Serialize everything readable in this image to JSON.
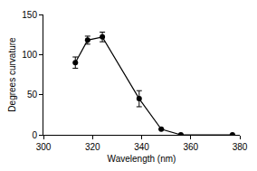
{
  "chart_data": {
    "type": "line",
    "x_label": "Wavelength (nm)",
    "y_label": "Degrees curvature",
    "x": [
      313,
      318,
      324,
      339,
      348,
      356,
      377
    ],
    "values": [
      90,
      118,
      122,
      45,
      7,
      0,
      0
    ],
    "errors": [
      7,
      5,
      6,
      10,
      null,
      null,
      null
    ],
    "color": "#000000",
    "marker": "circle",
    "line_style": "solid",
    "xlim": [
      300,
      380
    ],
    "xticks": [
      300,
      320,
      340,
      360,
      380
    ],
    "ylim": [
      0,
      150
    ],
    "yticks": [
      0,
      50,
      100,
      150
    ],
    "grid": false
  }
}
